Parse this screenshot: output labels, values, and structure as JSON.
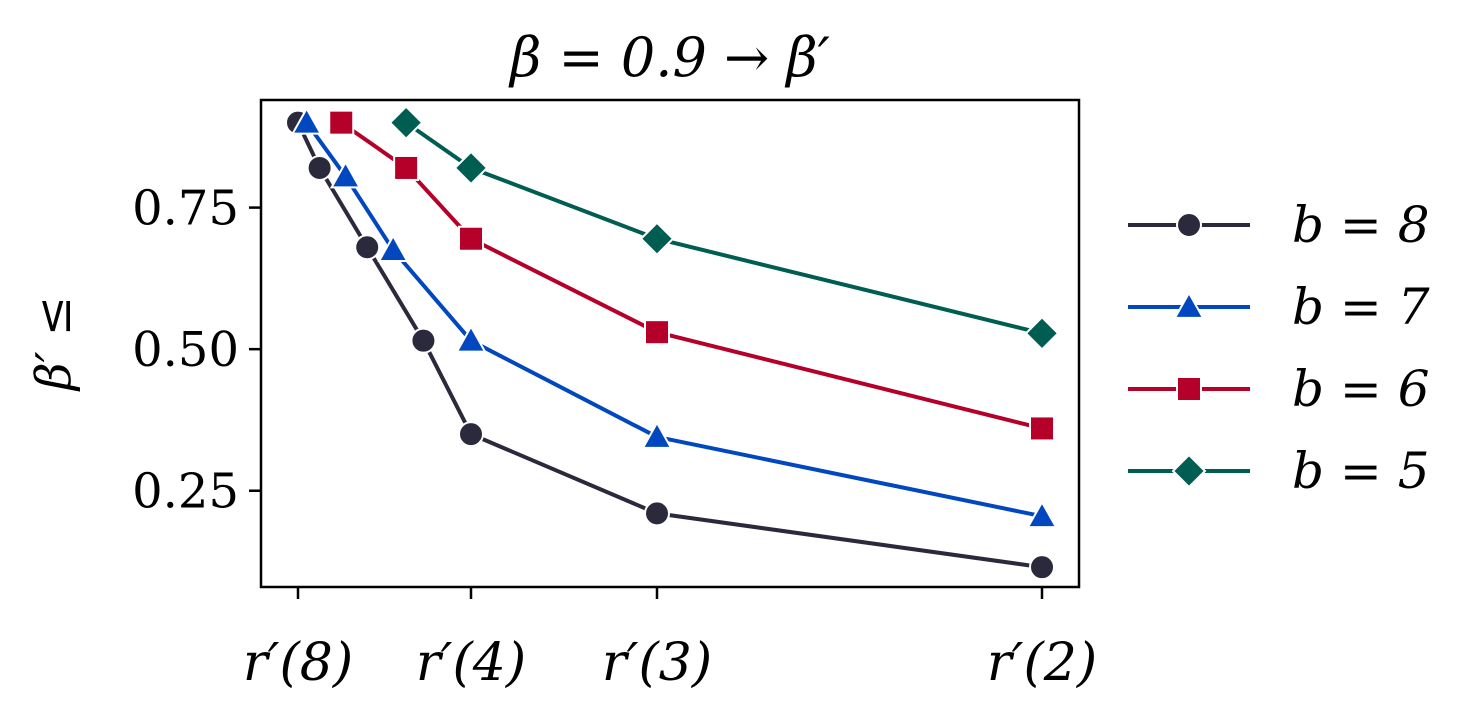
{
  "chart_data": {
    "type": "line",
    "title": "β = 0.9 → β′",
    "ylabel": "β′ ≤",
    "xlabel": "",
    "xtick_positions": [
      8,
      4,
      3,
      2
    ],
    "xtick_labels": [
      "r′(8)",
      "r′(4)",
      "r′(3)",
      "r′(2)"
    ],
    "yticks": [
      0.25,
      0.5,
      0.75
    ],
    "ytick_labels": [
      "0.25",
      "0.50",
      "0.75"
    ],
    "ylim": [
      0.08,
      0.94
    ],
    "grid": false,
    "legend_position": "right",
    "series": [
      {
        "name": "b = 8",
        "color": "#2b2a3d",
        "marker": "circle",
        "points": [
          [
            8.0,
            0.9
          ],
          [
            7.5,
            0.82
          ],
          [
            6.4,
            0.68
          ],
          [
            5.1,
            0.515
          ],
          [
            4.0,
            0.35
          ],
          [
            3.0,
            0.21
          ],
          [
            2.0,
            0.115
          ]
        ]
      },
      {
        "name": "b = 7",
        "color": "#0047c0",
        "marker": "triangle",
        "points": [
          [
            7.8,
            0.9
          ],
          [
            6.9,
            0.805
          ],
          [
            5.8,
            0.675
          ],
          [
            4.0,
            0.515
          ],
          [
            3.0,
            0.345
          ],
          [
            2.0,
            0.205
          ]
        ]
      },
      {
        "name": "b = 6",
        "color": "#b5002a",
        "marker": "square",
        "points": [
          [
            7.0,
            0.9
          ],
          [
            5.5,
            0.82
          ],
          [
            4.0,
            0.695
          ],
          [
            3.0,
            0.53
          ],
          [
            2.0,
            0.36
          ]
        ]
      },
      {
        "name": "b = 5",
        "color": "#005d52",
        "marker": "diamond",
        "points": [
          [
            5.5,
            0.9
          ],
          [
            4.0,
            0.82
          ],
          [
            3.0,
            0.695
          ],
          [
            2.0,
            0.528
          ]
        ]
      }
    ]
  }
}
